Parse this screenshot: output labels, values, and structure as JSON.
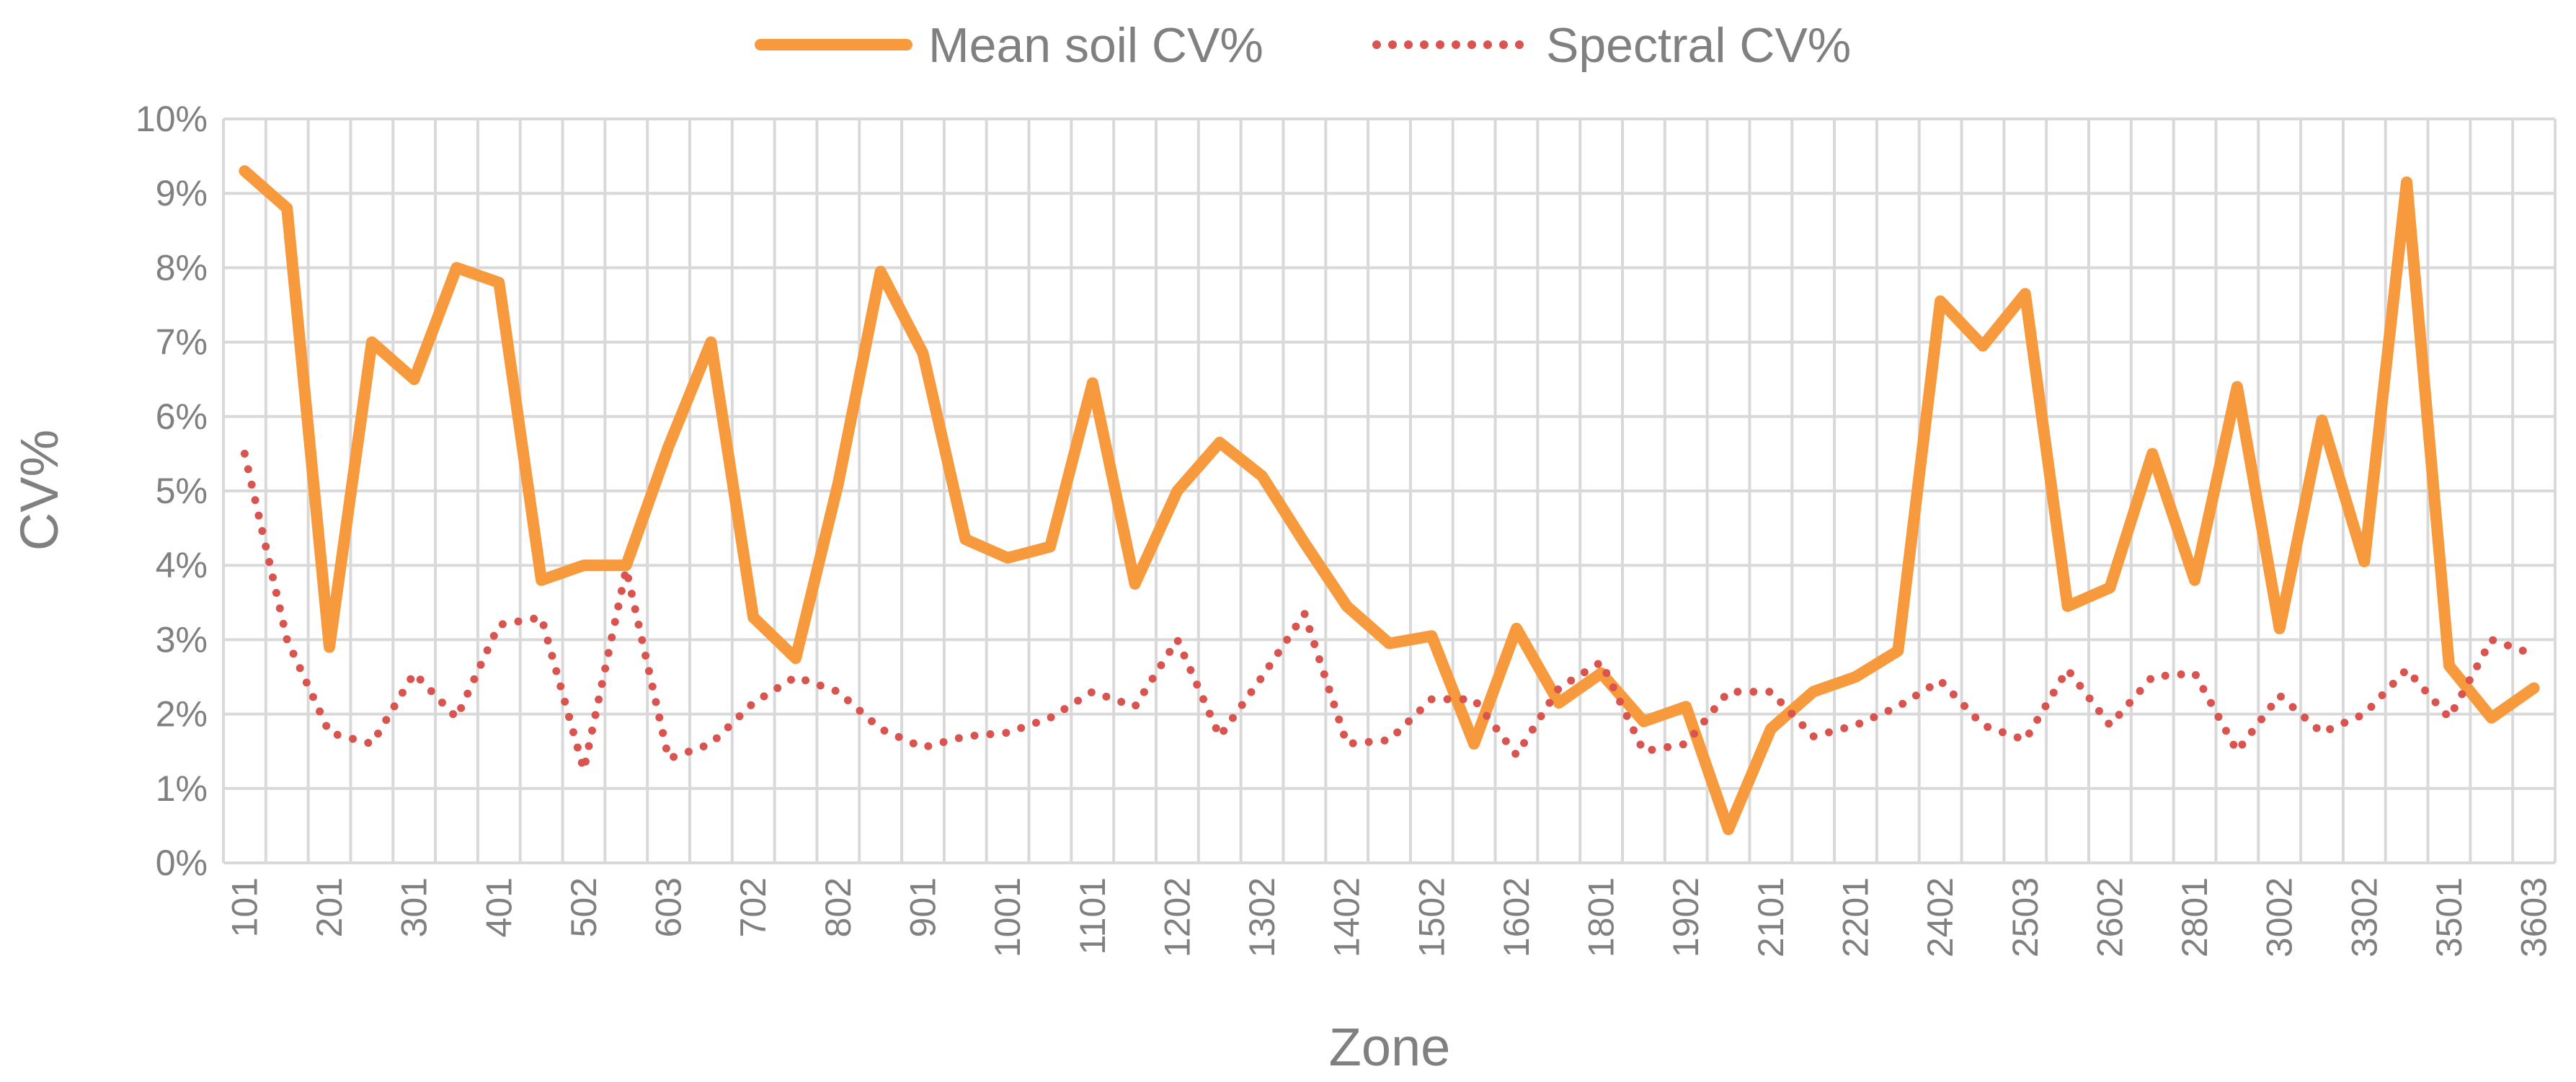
{
  "chart_data": {
    "type": "line",
    "title": "",
    "xlabel": "Zone",
    "ylabel": "CV%",
    "ylim": [
      0,
      10
    ],
    "y_tick_labels": [
      "0%",
      "1%",
      "2%",
      "3%",
      "4%",
      "5%",
      "6%",
      "7%",
      "8%",
      "9%",
      "10%"
    ],
    "x_tick_labels": [
      "101",
      "201",
      "301",
      "401",
      "502",
      "603",
      "702",
      "802",
      "901",
      "1001",
      "1101",
      "1202",
      "1302",
      "1402",
      "1502",
      "1602",
      "1801",
      "1902",
      "2101",
      "2201",
      "2402",
      "2503",
      "2602",
      "2801",
      "3002",
      "3302",
      "3501",
      "3603"
    ],
    "x_tick_label_every": 2,
    "grid": true,
    "legend_position": "top",
    "series": [
      {
        "name": "Mean soil CV%",
        "color": "#F79A3E",
        "style": "solid",
        "values": [
          9.3,
          8.8,
          2.9,
          7.0,
          6.5,
          8.0,
          7.8,
          3.8,
          4.0,
          4.0,
          5.6,
          7.0,
          3.3,
          2.75,
          5.1,
          7.95,
          6.85,
          4.35,
          4.1,
          4.25,
          6.45,
          3.75,
          5.0,
          5.65,
          5.2,
          4.3,
          3.45,
          2.95,
          3.05,
          1.6,
          3.15,
          2.15,
          2.55,
          1.9,
          2.1,
          0.45,
          1.8,
          2.3,
          2.5,
          2.85,
          7.55,
          6.95,
          7.65,
          3.45,
          3.7,
          5.5,
          3.8,
          6.4,
          3.15,
          5.95,
          4.05,
          9.15,
          2.65,
          1.95,
          2.35
        ]
      },
      {
        "name": "Spectral CV%",
        "color": "#D9534F",
        "style": "dotted",
        "values": [
          5.5,
          3.0,
          1.75,
          1.6,
          2.55,
          1.95,
          3.2,
          3.3,
          1.25,
          3.95,
          1.4,
          1.6,
          2.15,
          2.5,
          2.3,
          1.8,
          1.55,
          1.7,
          1.75,
          1.95,
          2.3,
          2.1,
          3.0,
          1.7,
          2.5,
          3.35,
          1.6,
          1.65,
          2.2,
          2.2,
          1.45,
          2.35,
          2.7,
          1.5,
          1.6,
          2.3,
          2.3,
          1.7,
          1.85,
          2.1,
          2.45,
          1.85,
          1.65,
          2.6,
          1.85,
          2.5,
          2.55,
          1.5,
          2.25,
          1.75,
          2.0,
          2.6,
          1.95,
          3.0,
          2.8
        ]
      }
    ]
  }
}
